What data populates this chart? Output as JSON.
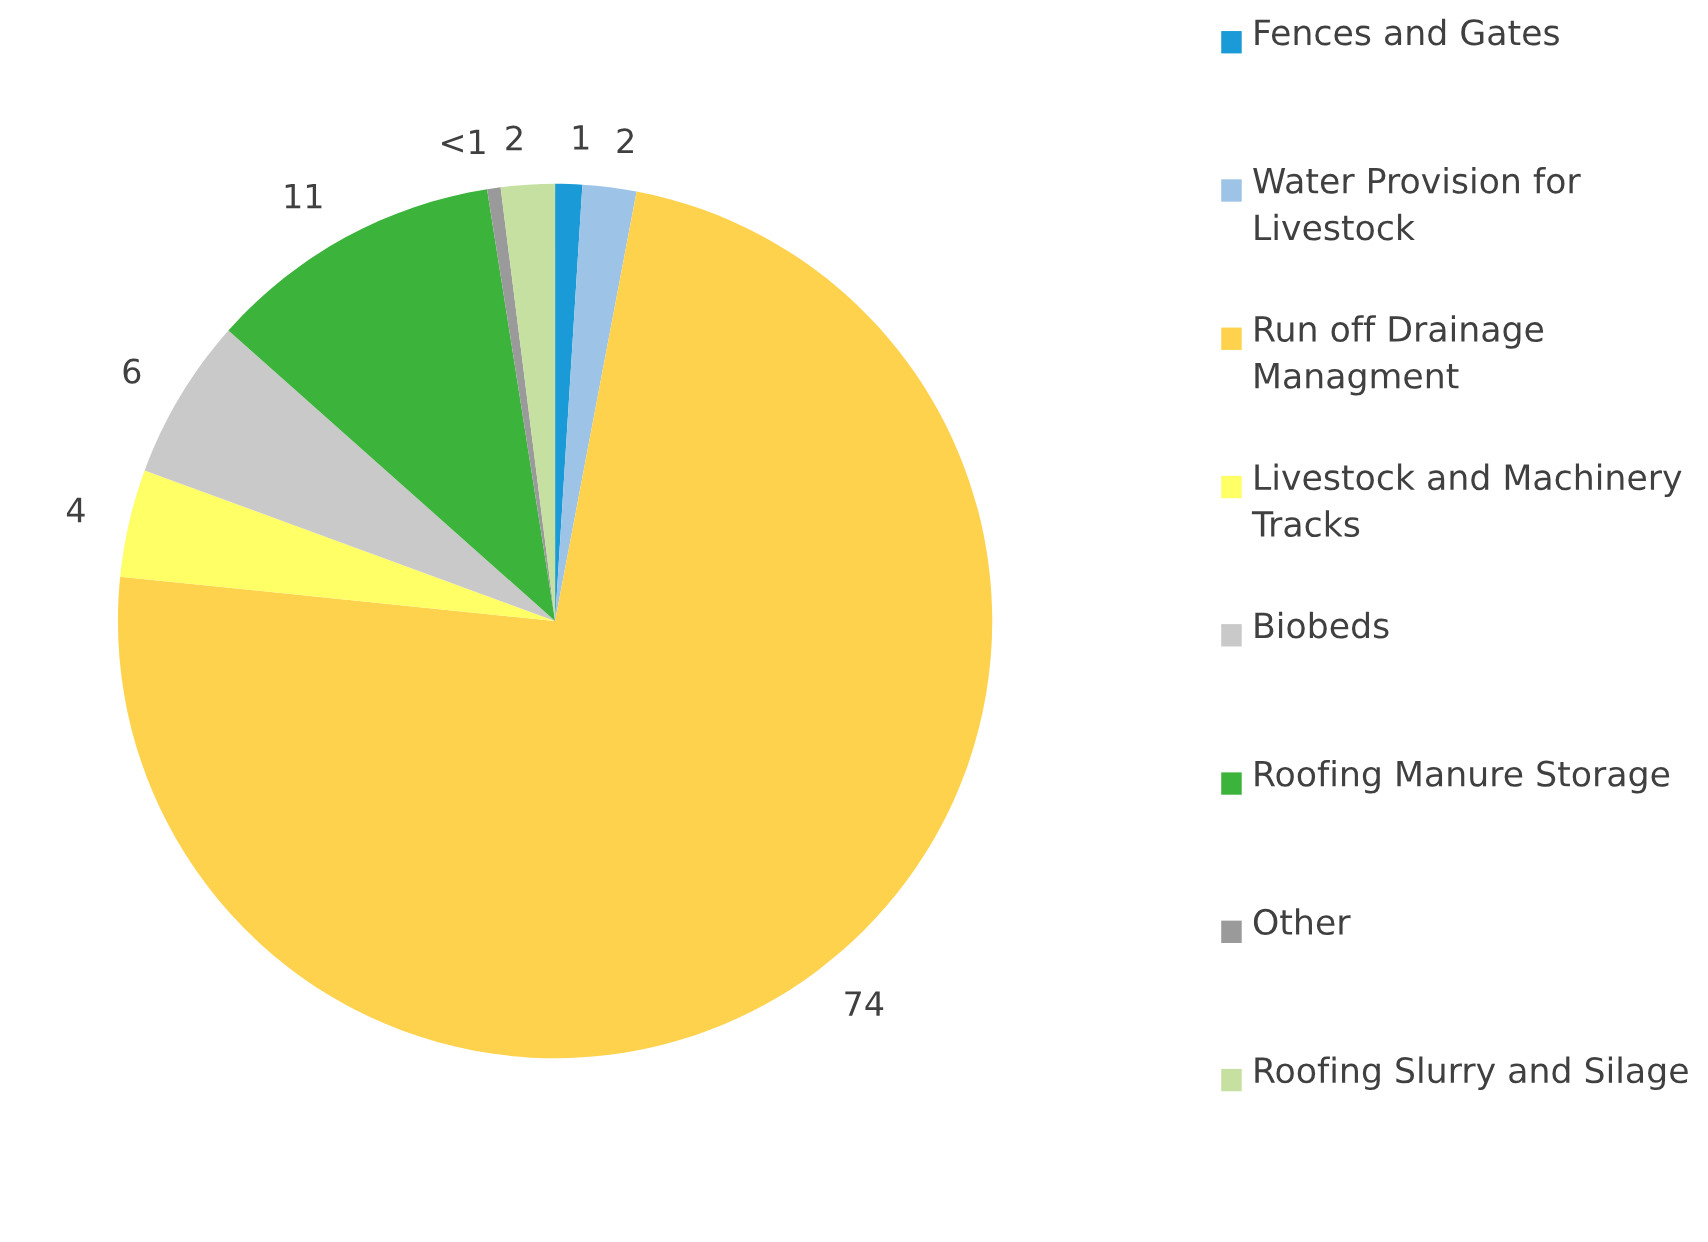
{
  "chart_data": {
    "type": "pie",
    "categories": [
      "Fences and Gates",
      "Water Provision for Livestock",
      "Run off Drainage Managment",
      "Livestock and Machinery Tracks",
      "Biobeds",
      "Roofing Manure Storage",
      "Other",
      "Roofing Slurry and Silage"
    ],
    "values": [
      1,
      2,
      74,
      4,
      6,
      11,
      0.5,
      2
    ],
    "value_labels": [
      "1",
      "2",
      "74",
      "4",
      "6",
      "11",
      "<1",
      "2"
    ],
    "colors": [
      "#1a9ad6",
      "#9dc3e6",
      "#ffd24d",
      "#ffff66",
      "#c9c9c9",
      "#3cb43c",
      "#9a9a9a",
      "#c5e0a0"
    ],
    "legend": "right"
  }
}
